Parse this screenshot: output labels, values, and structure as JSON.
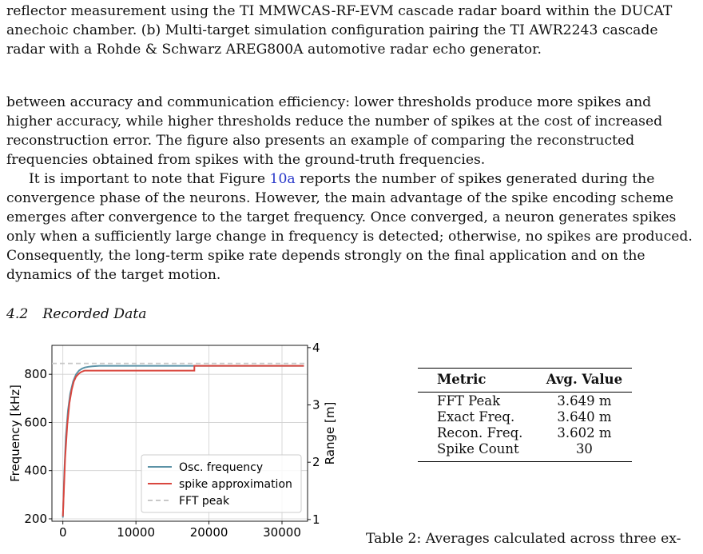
{
  "text": {
    "para1": "reflector measurement using the TI MMWCAS-RF-EVM cascade radar board within the DUCAT anechoic chamber. (b) Multi-target simulation configuration pairing the TI AWR2243 cascade radar with a Rohde & Schwarz AREG800A automotive radar echo generator.",
    "para2a": "between accuracy and communication efficiency: lower thresholds produce more spikes and higher accuracy, while higher thresholds reduce the number of spikes at the cost of increased reconstruction error. The figure also presents an example of comparing the reconstructed frequencies obtained from spikes with the ground-truth frequencies.",
    "para3_pre": "It is important to note that Figure ",
    "para3_link": "10a",
    "para3_post": " reports the number of spikes generated during the convergence phase of the neurons. However, the main advantage of the spike encoding scheme emerges after convergence to the target frequency. Once converged, a neuron generates spikes only when a sufficiently large change in frequency is detected; otherwise, no spikes are produced. Consequently, the long-term spike rate depends strongly on the final application and on the dynamics of the target motion.",
    "section_num": "4.2",
    "section_title": "Recorded Data",
    "caption": "Table 2: Averages calculated across three ex-"
  },
  "table": {
    "headers": [
      "Metric",
      "Avg. Value"
    ],
    "rows": [
      [
        "FFT Peak",
        "3.649 m"
      ],
      [
        "Exact Freq.",
        "3.640 m"
      ],
      [
        "Recon. Freq.",
        "3.602 m"
      ],
      [
        "Spike Count",
        "30"
      ]
    ]
  },
  "chart_data": {
    "type": "line",
    "xlim": [
      -1500,
      33500
    ],
    "ylim": [
      190,
      920
    ],
    "x_ticks": [
      "0",
      "10000",
      "20000",
      "30000"
    ],
    "y_ticks": [
      "200",
      "400",
      "600",
      "800"
    ],
    "ylabel": "Frequency [kHz]",
    "y2label": "Range [m]",
    "y2_ticks": [
      "1",
      "2",
      "3",
      "4"
    ],
    "y2_tick_values": [
      1,
      2,
      3,
      4
    ],
    "grid": true,
    "legend_position": "bottom-right",
    "series": [
      {
        "name": "Osc. frequency",
        "color": "#5b92a6",
        "style": "solid",
        "x": [
          0,
          200,
          400,
          700,
          1000,
          1400,
          1800,
          2200,
          2600,
          3000,
          3500,
          4000,
          5000,
          33000
        ],
        "y": [
          205,
          390,
          540,
          650,
          720,
          770,
          800,
          815,
          823,
          828,
          831,
          833,
          835,
          835
        ]
      },
      {
        "name": "spike approximation",
        "color": "#d9473f",
        "style": "solid",
        "x": [
          0,
          300,
          600,
          900,
          1200,
          1500,
          1800,
          2100,
          2400,
          2700,
          3000,
          18000,
          18000,
          33000
        ],
        "y": [
          210,
          450,
          590,
          680,
          735,
          770,
          790,
          800,
          808,
          812,
          815,
          815,
          835,
          835
        ]
      },
      {
        "name": "FFT peak",
        "color": "#c8c8c8",
        "style": "dashed",
        "x": [
          -1500,
          33500
        ],
        "y": [
          845,
          845
        ]
      }
    ]
  }
}
